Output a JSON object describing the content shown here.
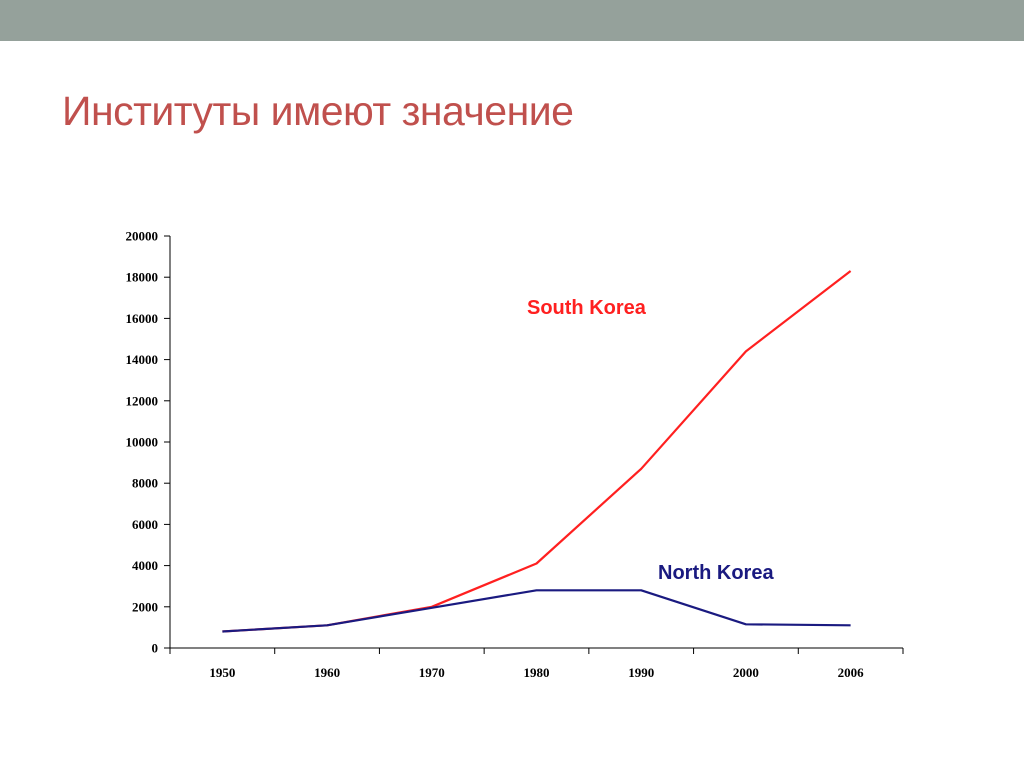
{
  "slide": {
    "title": "Институты имеют значение"
  },
  "colors": {
    "top_bar": "#95a19b",
    "title": "#c0504d",
    "south_korea": "#ff2020",
    "north_korea": "#1a1a80",
    "axis": "#000000"
  },
  "chart_data": {
    "type": "line",
    "categories": [
      "1950",
      "1960",
      "1970",
      "1980",
      "1990",
      "2000",
      "2006"
    ],
    "series": [
      {
        "name": "South Korea",
        "values": [
          800,
          1100,
          2000,
          4100,
          8700,
          14400,
          18300
        ]
      },
      {
        "name": "North Korea",
        "values": [
          800,
          1100,
          1950,
          2800,
          2800,
          1150,
          1100
        ]
      }
    ],
    "y_ticks": [
      "0",
      "2000",
      "4000",
      "6000",
      "8000",
      "10000",
      "12000",
      "14000",
      "16000",
      "18000",
      "20000"
    ],
    "ylim": [
      0,
      20000
    ],
    "grid": false,
    "title": "",
    "xlabel": "",
    "ylabel": ""
  }
}
